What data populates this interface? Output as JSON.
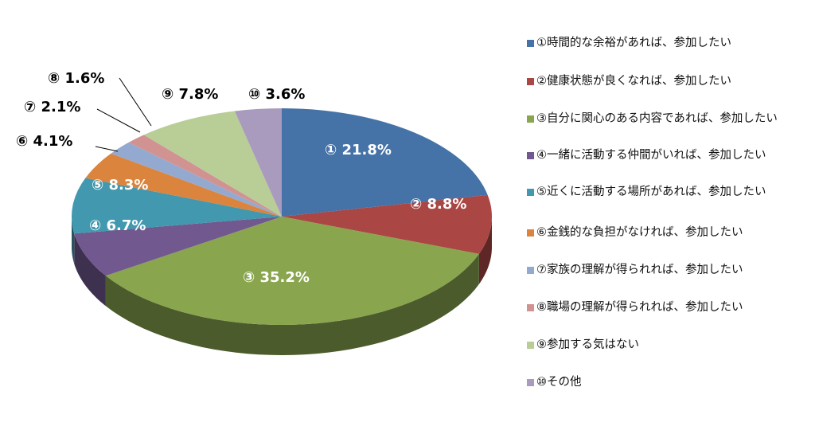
{
  "chart_data": {
    "type": "pie",
    "style": "3d",
    "legend_position": "right",
    "start": "top, clockwise",
    "slices": [
      {
        "label": "①時間的な余裕があれば、参加したい",
        "data_label": "① 21.8%",
        "value": 21.8,
        "color": "#4572A7"
      },
      {
        "label": "②健康状態が良くなれば、参加したい",
        "data_label": "② 8.8%",
        "value": 8.8,
        "color": "#AA4643"
      },
      {
        "label": "③自分に関心のある内容であれば、参加したい",
        "data_label": "③ 35.2%",
        "value": 35.2,
        "color": "#89A54E"
      },
      {
        "label": "④一緒に活動する仲間がいれば、参加したい",
        "data_label": "④ 6.7%",
        "value": 6.7,
        "color": "#71588F"
      },
      {
        "label": "⑤近くに活動する場所があれば、参加したい",
        "data_label": "⑤ 8.3%",
        "value": 8.3,
        "color": "#4198AF"
      },
      {
        "label": "⑥金銭的な負担がなければ、参加したい",
        "data_label": "⑥ 4.1%",
        "value": 4.1,
        "color": "#DB843D"
      },
      {
        "label": "⑦家族の理解が得られれば、参加したい",
        "data_label": "⑦ 2.1%",
        "value": 2.1,
        "color": "#93A9CF"
      },
      {
        "label": "⑧職場の理解が得られれば、参加したい",
        "data_label": "⑧ 1.6%",
        "value": 1.6,
        "color": "#D19392"
      },
      {
        "label": "⑨参加する気はない",
        "data_label": "⑨ 7.8%",
        "value": 7.8,
        "color": "#B9CD96"
      },
      {
        "label": "⑩その他",
        "data_label": "⑩ 3.6%",
        "value": 3.6,
        "color": "#A99BBD"
      }
    ]
  }
}
